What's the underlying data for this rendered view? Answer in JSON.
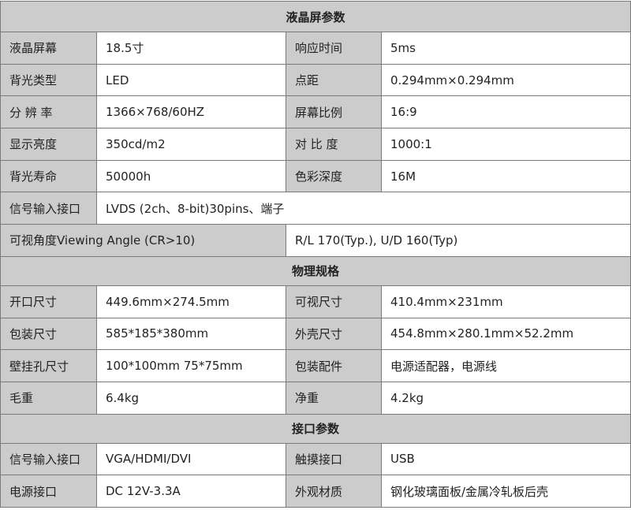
{
  "sections": {
    "lcd": "液晶屏参数",
    "physical": "物理规格",
    "interface": "接口参数"
  },
  "lcd_rows": [
    {
      "k1": "液晶屏幕",
      "v1": "18.5寸",
      "k2": "响应时间",
      "v2": "5ms"
    },
    {
      "k1": "背光类型",
      "v1": "LED",
      "k2": "点距",
      "v2": "0.294mm×0.294mm"
    },
    {
      "k1": "分 辨 率",
      "v1": "1366×768/60HZ",
      "k2": "屏幕比例",
      "v2": "16:9"
    },
    {
      "k1": "显示亮度",
      "v1": "350cd/m2",
      "k2": "对 比 度",
      "v2": "1000:1"
    },
    {
      "k1": "背光寿命",
      "v1": "50000h",
      "k2": "色彩深度",
      "v2": "16M"
    }
  ],
  "signal_row": {
    "k": "信号输入接口",
    "v": "LVDS (2ch、8-bit)30pins、端子"
  },
  "angle_row": {
    "k": "可视角度Viewing Angle (CR>10)",
    "v": "R/L 170(Typ.), U/D 160(Typ)"
  },
  "physical_rows": [
    {
      "k1": "开口尺寸",
      "v1": "449.6mm×274.5mm",
      "k2": "可视尺寸",
      "v2": "410.4mm×231mm"
    },
    {
      "k1": "包装尺寸",
      "v1": "585*185*380mm",
      "k2": "外壳尺寸",
      "v2": "454.8mm×280.1mm×52.2mm"
    },
    {
      "k1": "壁挂孔尺寸",
      "v1": "100*100mm 75*75mm",
      "k2": "包装配件",
      "v2": "电源适配器，电源线"
    },
    {
      "k1": "毛重",
      "v1": "6.4kg",
      "k2": "净重",
      "v2": "4.2kg"
    }
  ],
  "interface_rows": [
    {
      "k1": "信号输入接口",
      "v1": "VGA/HDMI/DVI",
      "k2": "触摸接口",
      "v2": "USB"
    },
    {
      "k1": "电源接口",
      "v1": "DC 12V-3.3A",
      "k2": "外观材质",
      "v2": "钢化玻璃面板/金属冷轧板后壳"
    }
  ]
}
